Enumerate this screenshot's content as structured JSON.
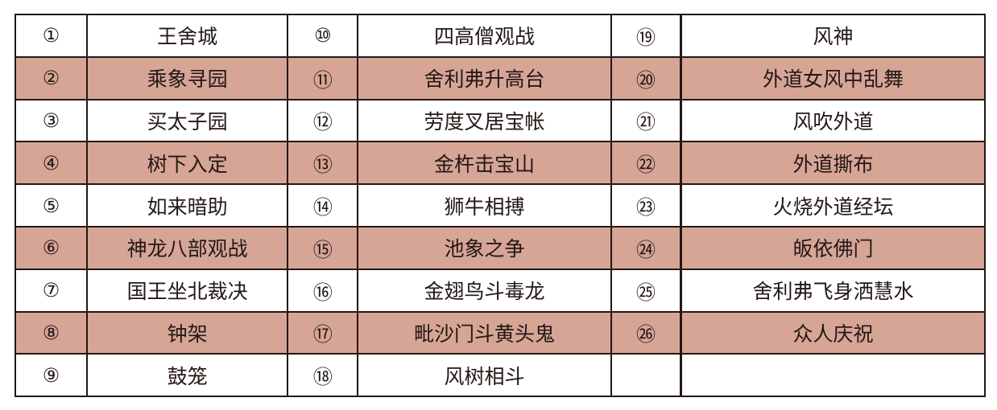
{
  "accent_color": "#d7a596",
  "rows": [
    [
      {
        "n": "①",
        "t": "王舍城"
      },
      {
        "n": "⑩",
        "t": "四高僧观战"
      },
      {
        "n": "⑲",
        "t": "风神"
      }
    ],
    [
      {
        "n": "②",
        "t": "乘象寻园"
      },
      {
        "n": "⑪",
        "t": "舍利弗升高台"
      },
      {
        "n": "⑳",
        "t": "外道女风中乱舞"
      }
    ],
    [
      {
        "n": "③",
        "t": "买太子园"
      },
      {
        "n": "⑫",
        "t": "劳度叉居宝帐"
      },
      {
        "n": "㉑",
        "t": "风吹外道"
      }
    ],
    [
      {
        "n": "④",
        "t": "树下入定"
      },
      {
        "n": "⑬",
        "t": "金杵击宝山"
      },
      {
        "n": "㉒",
        "t": "外道撕布"
      }
    ],
    [
      {
        "n": "⑤",
        "t": "如来暗助"
      },
      {
        "n": "⑭",
        "t": "狮牛相搏"
      },
      {
        "n": "㉓",
        "t": "火烧外道经坛"
      }
    ],
    [
      {
        "n": "⑥",
        "t": "神龙八部观战"
      },
      {
        "n": "⑮",
        "t": "池象之争"
      },
      {
        "n": "㉔",
        "t": "皈依佛门"
      }
    ],
    [
      {
        "n": "⑦",
        "t": "国王坐北裁决"
      },
      {
        "n": "⑯",
        "t": "金翅鸟斗毒龙"
      },
      {
        "n": "㉕",
        "t": "舍利弗飞身洒慧水"
      }
    ],
    [
      {
        "n": "⑧",
        "t": "钟架"
      },
      {
        "n": "⑰",
        "t": "毗沙门斗黄头鬼"
      },
      {
        "n": "㉖",
        "t": "众人庆祝"
      }
    ],
    [
      {
        "n": "⑨",
        "t": "鼓笼"
      },
      {
        "n": "⑱",
        "t": "风树相斗"
      },
      {
        "n": "",
        "t": ""
      }
    ]
  ]
}
